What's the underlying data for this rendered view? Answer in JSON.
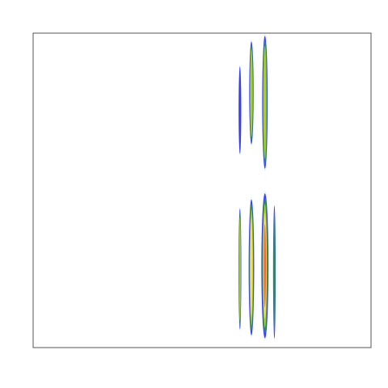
{
  "chart_data": {
    "type": "heatmap",
    "title": "",
    "xlabel": "",
    "ylabel": "",
    "x_range": [
      0,
      1
    ],
    "y_range": [
      0,
      1
    ],
    "grid": false,
    "legend": "none",
    "colormap": [
      "#ffffff",
      "#d6ecff",
      "#1a1aff",
      "#2f9a2f",
      "#a6cc33",
      "#ffd966",
      "#ff5a33"
    ],
    "bands": [
      {
        "id": "band-1",
        "x": 0.612,
        "width": 0.008,
        "y_min": 0.61,
        "y_max": 0.9,
        "peak": 0.25
      },
      {
        "id": "band-2",
        "x": 0.646,
        "width": 0.016,
        "y_min": 0.64,
        "y_max": 0.98,
        "peak": 0.5
      },
      {
        "id": "band-3",
        "x": 0.686,
        "width": 0.02,
        "y_min": 0.56,
        "y_max": 1.0,
        "peak": 0.62
      },
      {
        "id": "band-4",
        "x": 0.612,
        "width": 0.01,
        "y_min": 0.05,
        "y_max": 0.45,
        "peak": 0.55
      },
      {
        "id": "band-5",
        "x": 0.646,
        "width": 0.02,
        "y_min": 0.03,
        "y_max": 0.48,
        "peak": 0.72
      },
      {
        "id": "band-6",
        "x": 0.686,
        "width": 0.026,
        "y_min": 0.02,
        "y_max": 0.5,
        "peak": 1.0
      },
      {
        "id": "band-7",
        "x": 0.714,
        "width": 0.006,
        "y_min": 0.02,
        "y_max": 0.46,
        "peak": 0.4
      }
    ]
  }
}
